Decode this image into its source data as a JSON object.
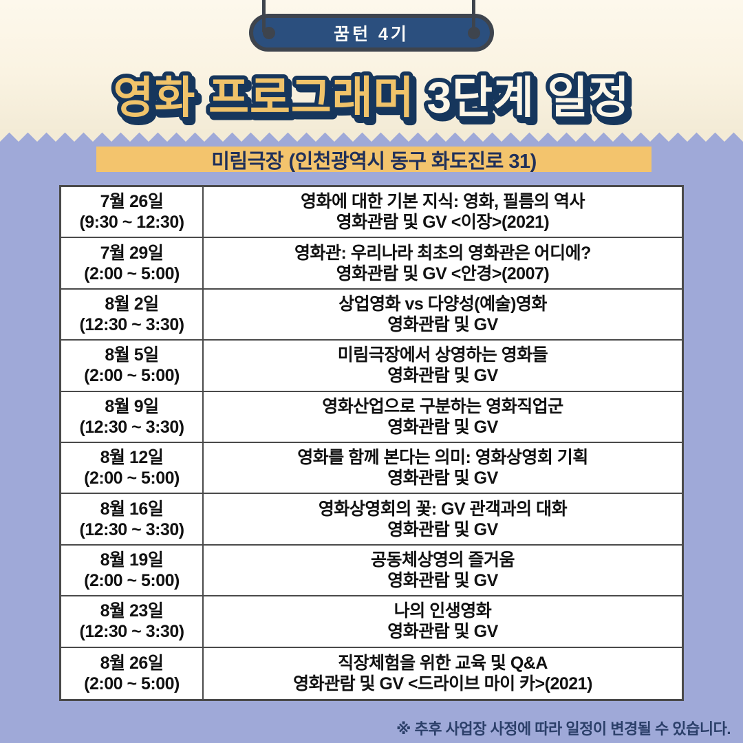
{
  "header": {
    "badge": "꿈턴 4기",
    "title_gold": "영화 프로그래머",
    "title_cream": "3단계 일정"
  },
  "venue": {
    "label": "미림극장 (인천광역시 동구 화도진로 31)"
  },
  "schedule": {
    "rows": [
      {
        "date": "7월 26일",
        "time": "(9:30 ~ 12:30)",
        "line1": "영화에 대한 기본 지식: 영화, 필름의 역사",
        "line2": "영화관람 및 GV <이장>(2021)"
      },
      {
        "date": "7월 29일",
        "time": "(2:00 ~ 5:00)",
        "line1": "영화관: 우리나라 최초의 영화관은 어디에?",
        "line2": "영화관람 및 GV <안경>(2007)"
      },
      {
        "date": "8월 2일",
        "time": "(12:30 ~ 3:30)",
        "line1": "상업영화 vs 다양성(예술)영화",
        "line2": "영화관람 및 GV"
      },
      {
        "date": "8월 5일",
        "time": "(2:00 ~ 5:00)",
        "line1": "미림극장에서 상영하는 영화들",
        "line2": "영화관람 및 GV"
      },
      {
        "date": "8월 9일",
        "time": "(12:30 ~ 3:30)",
        "line1": "영화산업으로 구분하는 영화직업군",
        "line2": "영화관람 및 GV"
      },
      {
        "date": "8월 12일",
        "time": "(2:00 ~ 5:00)",
        "line1": "영화를 함께 본다는 의미: 영화상영회 기획",
        "line2": "영화관람 및 GV"
      },
      {
        "date": "8월 16일",
        "time": "(12:30 ~ 3:30)",
        "line1": "영화상영회의 꽃: GV 관객과의 대화",
        "line2": "영화관람 및 GV"
      },
      {
        "date": "8월 19일",
        "time": "(2:00 ~ 5:00)",
        "line1": "공동체상영의 즐거움",
        "line2": "영화관람 및 GV"
      },
      {
        "date": "8월 23일",
        "time": "(12:30 ~ 3:30)",
        "line1": "나의 인생영화",
        "line2": "영화관람 및 GV"
      },
      {
        "date": "8월 26일",
        "time": "(2:00 ~ 5:00)",
        "line1": "직장체험을 위한 교육 및 Q&A",
        "line2": "영화관람 및 GV <드라이브 마이 카>(2021)"
      }
    ]
  },
  "footnote": "※ 추후 사업장 사정에 따라 일정이 변경될 수 있습니다.",
  "colors": {
    "cream_bg": "#faf3e2",
    "periwinkle_bg": "#9fa9d8",
    "pill_navy": "#2b4f7e",
    "outline_charcoal": "#3e444d",
    "gold": "#f3c46d",
    "title_navy": "#16365c",
    "table_border": "#4a4a4a",
    "footnote_navy": "#2b3f69"
  }
}
